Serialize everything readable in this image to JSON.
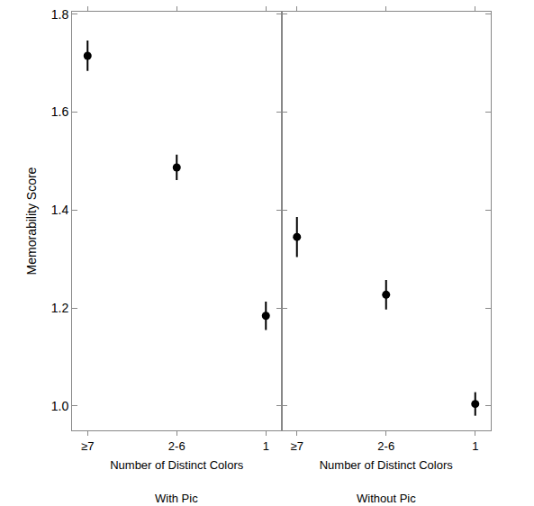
{
  "chart_data": [
    {
      "type": "scatter",
      "ylabel": "Memorability Score",
      "xlabel": "Number of Distinct Colors",
      "annotations": [
        "With Pic"
      ],
      "categories": [
        "≥7",
        "2-6",
        "1"
      ],
      "values": [
        1.715,
        1.487,
        1.184
      ],
      "errors": [
        0.031,
        0.026,
        0.029
      ],
      "color": "#000000",
      "marker": "circle",
      "ylim": [
        0.95,
        1.805
      ],
      "yticks": [
        {
          "value": 1,
          "label": "1.0"
        },
        {
          "value": 1.2,
          "label": "1.2"
        },
        {
          "value": 1.4,
          "label": "1.4"
        },
        {
          "value": 1.6,
          "label": "1.6"
        },
        {
          "value": 1.8,
          "label": "1.8"
        }
      ],
      "grid": false
    },
    {
      "type": "scatter",
      "xlabel": "Number of Distinct Colors",
      "annotations": [
        "Without Pic"
      ],
      "categories": [
        "≥7",
        "2-6",
        "1"
      ],
      "values": [
        1.345,
        1.227,
        1.004
      ],
      "errors": [
        0.041,
        0.03,
        0.024
      ],
      "color": "#000000",
      "marker": "circle",
      "ylim": [
        0.95,
        1.805
      ],
      "yticks": [
        {
          "value": 1,
          "label": "1.0"
        },
        {
          "value": 1.2,
          "label": "1.2"
        },
        {
          "value": 1.4,
          "label": "1.4"
        },
        {
          "value": 1.6,
          "label": "1.6"
        },
        {
          "value": 1.8,
          "label": "1.8"
        }
      ],
      "grid": false,
      "tick_labels": "x"
    }
  ]
}
